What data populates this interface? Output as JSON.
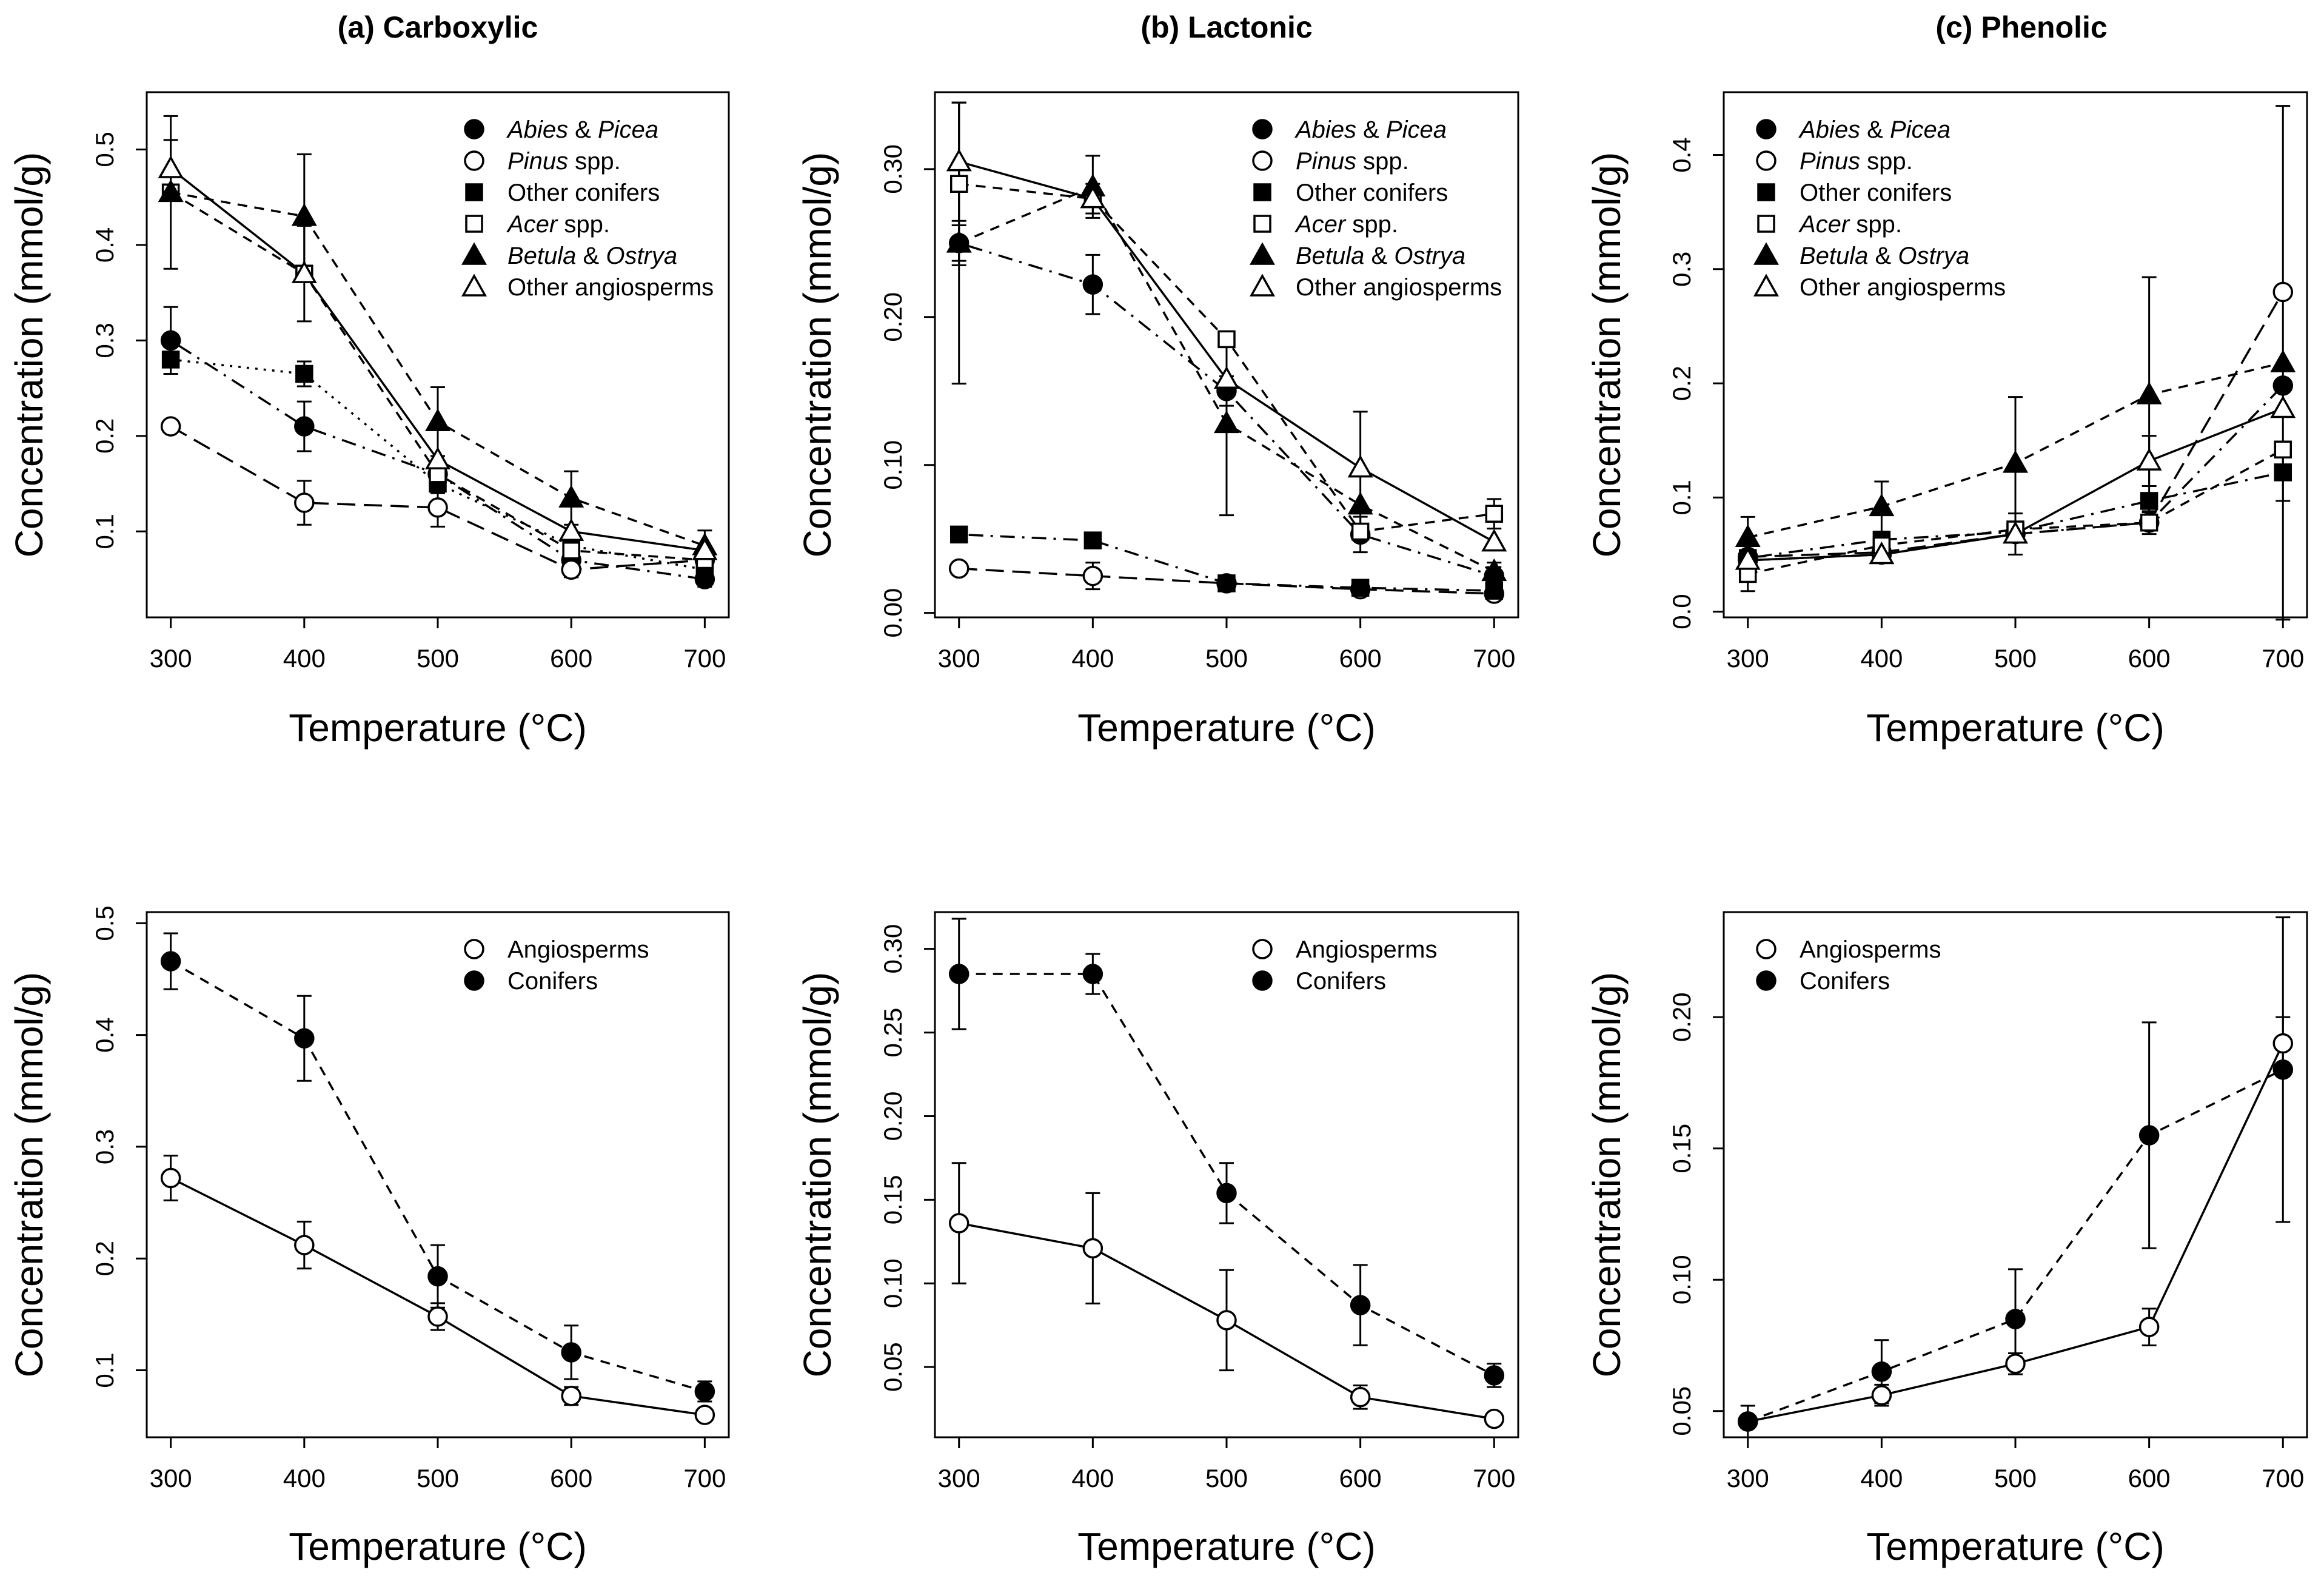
{
  "panel_titles": [
    "(a) Carboxylic",
    "(b) Lactonic",
    "(c) Phenolic"
  ],
  "chart_data": [
    {
      "id": "a-top",
      "type": "line",
      "title": "(a) Carboxylic",
      "xlabel": "Temperature (°C)",
      "ylabel": "Concentration (mmol/g)",
      "x": [
        300,
        400,
        500,
        600,
        700
      ],
      "xlim": [
        282,
        718
      ],
      "ylim": [
        0.01,
        0.56
      ],
      "yticks": [
        0.1,
        0.2,
        0.3,
        0.4,
        0.5
      ],
      "yticklabels": [
        "0.1",
        "0.2",
        "0.3",
        "0.4",
        "0.5"
      ],
      "legend": "top-right",
      "series": [
        {
          "name": "Abies & Picea",
          "name_italic": "Abies",
          "name_amp": " & ",
          "name_italic2": "Picea",
          "name_rest": "",
          "marker": "circle-filled",
          "line": "dotdash",
          "values": [
            0.3,
            0.21,
            0.16,
            0.07,
            0.05
          ],
          "errors": [
            0.035,
            0.026,
            0.012,
            0.01,
            0.008
          ]
        },
        {
          "name": "Pinus spp.",
          "name_italic": "Pinus",
          "name_amp": "",
          "name_italic2": "",
          "name_rest": " spp.",
          "marker": "circle-open",
          "line": "longdash",
          "values": [
            0.21,
            0.13,
            0.125,
            0.06,
            0.07
          ],
          "errors": [
            0.0,
            0.023,
            0.02,
            0.008,
            0.008
          ]
        },
        {
          "name": "Other conifers",
          "name_italic": "",
          "name_amp": "",
          "name_italic2": "",
          "name_rest": "Other conifers",
          "marker": "square-filled",
          "line": "dotted",
          "values": [
            0.28,
            0.265,
            0.15,
            0.085,
            0.06
          ],
          "errors": [
            0.015,
            0.013,
            0.01,
            0.008,
            0.006
          ]
        },
        {
          "name": "Acer spp.",
          "name_italic": "Acer",
          "name_amp": "",
          "name_italic2": "",
          "name_rest": " spp.",
          "marker": "square-open",
          "line": "dashed",
          "values": [
            0.455,
            0.37,
            0.16,
            0.08,
            0.07
          ],
          "errors": [
            0.0,
            0.0,
            0.0,
            0.0,
            0.0
          ]
        },
        {
          "name": "Betula & Ostrya",
          "name_italic": "Betula",
          "name_amp": " & ",
          "name_italic2": "Ostrya",
          "name_rest": "",
          "marker": "triangle-filled",
          "line": "dashed",
          "values": [
            0.455,
            0.43,
            0.215,
            0.135,
            0.085
          ],
          "errors": [
            0.08,
            0.065,
            0.036,
            0.028,
            0.016
          ]
        },
        {
          "name": "Other angiosperms",
          "name_italic": "",
          "name_amp": "",
          "name_italic2": "",
          "name_rest": "Other angiosperms",
          "marker": "triangle-open",
          "line": "solid",
          "values": [
            0.48,
            0.37,
            0.175,
            0.1,
            0.08
          ],
          "errors": [
            0.03,
            0.05,
            0.0,
            0.0,
            0.0
          ]
        }
      ]
    },
    {
      "id": "b-top",
      "type": "line",
      "title": "(b) Lactonic",
      "xlabel": "Temperature (°C)",
      "ylabel": "Concentration (mmol/g)",
      "x": [
        300,
        400,
        500,
        600,
        700
      ],
      "xlim": [
        282,
        718
      ],
      "ylim": [
        -0.003,
        0.352
      ],
      "yticks": [
        0.0,
        0.1,
        0.2,
        0.3
      ],
      "yticklabels": [
        "0.00",
        "0.10",
        "0.20",
        "0.30"
      ],
      "legend": "top-right",
      "series": [
        {
          "name": "Abies & Picea",
          "name_italic": "Abies",
          "name_amp": " & ",
          "name_italic2": "Picea",
          "name_rest": "",
          "marker": "circle-filled",
          "line": "dotdash",
          "values": [
            0.25,
            0.222,
            0.15,
            0.053,
            0.025
          ],
          "errors": [
            0.012,
            0.02,
            0.01,
            0.012,
            0.006
          ]
        },
        {
          "name": "Pinus spp.",
          "name_italic": "Pinus",
          "name_amp": "",
          "name_italic2": "",
          "name_rest": " spp.",
          "marker": "circle-open",
          "line": "longdash",
          "values": [
            0.03,
            0.025,
            0.02,
            0.016,
            0.013
          ],
          "errors": [
            0.0,
            0.009,
            0.0,
            0.0,
            0.0
          ]
        },
        {
          "name": "Other conifers",
          "name_italic": "",
          "name_amp": "",
          "name_italic2": "",
          "name_rest": "Other conifers",
          "marker": "square-filled",
          "line": "dotdash",
          "values": [
            0.053,
            0.049,
            0.02,
            0.017,
            0.015
          ],
          "errors": [
            0.0,
            0.0,
            0.0,
            0.0,
            0.0
          ]
        },
        {
          "name": "Acer spp.",
          "name_italic": "Acer",
          "name_amp": "",
          "name_italic2": "",
          "name_rest": " spp.",
          "marker": "square-open",
          "line": "dashed",
          "values": [
            0.29,
            0.28,
            0.185,
            0.055,
            0.067
          ],
          "errors": [
            0.055,
            0.0,
            0.0,
            0.0,
            0.01
          ]
        },
        {
          "name": "Betula & Ostrya",
          "name_italic": "Betula",
          "name_amp": " & ",
          "name_italic2": "Ostrya",
          "name_rest": "",
          "marker": "triangle-filled",
          "line": "dashed",
          "values": [
            0.25,
            0.288,
            0.128,
            0.073,
            0.028
          ],
          "errors": [
            0.095,
            0.021,
            0.062,
            0.0,
            0.006
          ]
        },
        {
          "name": "Other angiosperms",
          "name_italic": "",
          "name_amp": "",
          "name_italic2": "",
          "name_rest": "Other angiosperms",
          "marker": "triangle-open",
          "line": "solid",
          "values": [
            0.305,
            0.28,
            0.158,
            0.098,
            0.048
          ],
          "errors": [
            0.04,
            0.01,
            0.0,
            0.038,
            0.0
          ]
        }
      ]
    },
    {
      "id": "c-top",
      "type": "line",
      "title": "(c) Phenolic",
      "xlabel": "Temperature (°C)",
      "ylabel": "Concentration (mmol/g)",
      "x": [
        300,
        400,
        500,
        600,
        700
      ],
      "xlim": [
        282,
        718
      ],
      "ylim": [
        -0.005,
        0.455
      ],
      "yticks": [
        0.0,
        0.1,
        0.2,
        0.3,
        0.4
      ],
      "yticklabels": [
        "0.0",
        "0.1",
        "0.2",
        "0.3",
        "0.4"
      ],
      "legend": "top-left",
      "series": [
        {
          "name": "Abies & Picea",
          "name_italic": "Abies",
          "name_amp": " & ",
          "name_italic2": "Picea",
          "name_rest": "",
          "marker": "circle-filled",
          "line": "dotdash",
          "values": [
            0.045,
            0.05,
            0.068,
            0.078,
            0.198
          ],
          "errors": [
            0.0,
            0.0,
            0.0,
            0.0,
            0.0
          ]
        },
        {
          "name": "Pinus spp.",
          "name_italic": "Pinus",
          "name_amp": "",
          "name_italic2": "",
          "name_rest": " spp.",
          "marker": "circle-open",
          "line": "longdash",
          "values": [
            0.048,
            0.052,
            0.068,
            0.078,
            0.28
          ],
          "errors": [
            0.0,
            0.0,
            0.0,
            0.01,
            0.0
          ]
        },
        {
          "name": "Other conifers",
          "name_italic": "",
          "name_amp": "",
          "name_italic2": "",
          "name_rest": "Other conifers",
          "marker": "square-filled",
          "line": "dotdash",
          "values": [
            0.047,
            0.063,
            0.07,
            0.097,
            0.122
          ],
          "errors": [
            0.0,
            0.0,
            0.0,
            0.0,
            0.025
          ]
        },
        {
          "name": "Acer spp.",
          "name_italic": "Acer",
          "name_amp": "",
          "name_italic2": "",
          "name_rest": " spp.",
          "marker": "square-open",
          "line": "dashed",
          "values": [
            0.033,
            0.058,
            0.072,
            0.078,
            0.142
          ],
          "errors": [
            0.015,
            0.0,
            0.0,
            0.0,
            0.0
          ]
        },
        {
          "name": "Betula & Ostrya",
          "name_italic": "Betula",
          "name_amp": " & ",
          "name_italic2": "Ostrya",
          "name_rest": "",
          "marker": "triangle-filled",
          "line": "dashed",
          "values": [
            0.065,
            0.092,
            0.13,
            0.19,
            0.218
          ],
          "errors": [
            0.018,
            0.022,
            0.058,
            0.103,
            0.225
          ]
        },
        {
          "name": "Other angiosperms",
          "name_italic": "",
          "name_amp": "",
          "name_italic2": "",
          "name_rest": "Other angiosperms",
          "marker": "triangle-open",
          "line": "solid",
          "values": [
            0.045,
            0.05,
            0.068,
            0.132,
            0.178
          ],
          "errors": [
            0.0,
            0.0,
            0.018,
            0.022,
            0.0
          ]
        }
      ]
    },
    {
      "id": "a-bottom",
      "type": "line",
      "title": "",
      "xlabel": "Temperature (°C)",
      "ylabel": "Concentration (mmol/g)",
      "x": [
        300,
        400,
        500,
        600,
        700
      ],
      "xlim": [
        282,
        718
      ],
      "ylim": [
        0.04,
        0.51
      ],
      "yticks": [
        0.1,
        0.2,
        0.3,
        0.4,
        0.5
      ],
      "yticklabels": [
        "0.1",
        "0.2",
        "0.3",
        "0.4",
        "0.5"
      ],
      "legend": "top-right",
      "series": [
        {
          "name": "Angiosperms",
          "name_italic": "",
          "name_amp": "",
          "name_italic2": "",
          "name_rest": "Angiosperms",
          "marker": "circle-open",
          "line": "solid",
          "values": [
            0.272,
            0.212,
            0.148,
            0.077,
            0.06
          ],
          "errors": [
            0.02,
            0.021,
            0.012,
            0.008,
            0.004
          ]
        },
        {
          "name": "Conifers",
          "name_italic": "",
          "name_amp": "",
          "name_italic2": "",
          "name_rest": "Conifers",
          "marker": "circle-filled",
          "line": "dashed",
          "values": [
            0.466,
            0.397,
            0.184,
            0.116,
            0.081
          ],
          "errors": [
            0.025,
            0.038,
            0.028,
            0.024,
            0.009
          ]
        }
      ]
    },
    {
      "id": "b-bottom",
      "type": "line",
      "title": "",
      "xlabel": "Temperature (°C)",
      "ylabel": "Concentration (mmol/g)",
      "x": [
        300,
        400,
        500,
        600,
        700
      ],
      "xlim": [
        282,
        718
      ],
      "ylim": [
        0.008,
        0.322
      ],
      "yticks": [
        0.05,
        0.1,
        0.15,
        0.2,
        0.25,
        0.3
      ],
      "yticklabels": [
        "0.05",
        "0.10",
        "0.15",
        "0.20",
        "0.25",
        "0.30"
      ],
      "legend": "top-right",
      "series": [
        {
          "name": "Angiosperms",
          "name_italic": "",
          "name_amp": "",
          "name_italic2": "",
          "name_rest": "Angiosperms",
          "marker": "circle-open",
          "line": "solid",
          "values": [
            0.136,
            0.121,
            0.078,
            0.032,
            0.019
          ],
          "errors": [
            0.036,
            0.033,
            0.03,
            0.007,
            0.0
          ]
        },
        {
          "name": "Conifers",
          "name_italic": "",
          "name_amp": "",
          "name_italic2": "",
          "name_rest": "Conifers",
          "marker": "circle-filled",
          "line": "dashed",
          "values": [
            0.285,
            0.285,
            0.154,
            0.087,
            0.045
          ],
          "errors": [
            0.033,
            0.012,
            0.018,
            0.024,
            0.007
          ]
        }
      ]
    },
    {
      "id": "c-bottom",
      "type": "line",
      "title": "",
      "xlabel": "Temperature (°C)",
      "ylabel": "Concentration (mmol/g)",
      "x": [
        300,
        400,
        500,
        600,
        700
      ],
      "xlim": [
        282,
        718
      ],
      "ylim": [
        0.04,
        0.24
      ],
      "yticks": [
        0.05,
        0.1,
        0.15,
        0.2
      ],
      "yticklabels": [
        "0.05",
        "0.10",
        "0.15",
        "0.20"
      ],
      "legend": "top-left",
      "series": [
        {
          "name": "Angiosperms",
          "name_italic": "",
          "name_amp": "",
          "name_italic2": "",
          "name_rest": "Angiosperms",
          "marker": "circle-open",
          "line": "solid",
          "values": [
            0.046,
            0.056,
            0.068,
            0.082,
            0.19
          ],
          "errors": [
            0.006,
            0.004,
            0.004,
            0.007,
            0.01
          ]
        },
        {
          "name": "Conifers",
          "name_italic": "",
          "name_amp": "",
          "name_italic2": "",
          "name_rest": "Conifers",
          "marker": "circle-filled",
          "line": "dashed",
          "values": [
            0.046,
            0.065,
            0.085,
            0.155,
            0.18
          ],
          "errors": [
            0.0,
            0.012,
            0.019,
            0.043,
            0.058
          ]
        }
      ]
    }
  ]
}
